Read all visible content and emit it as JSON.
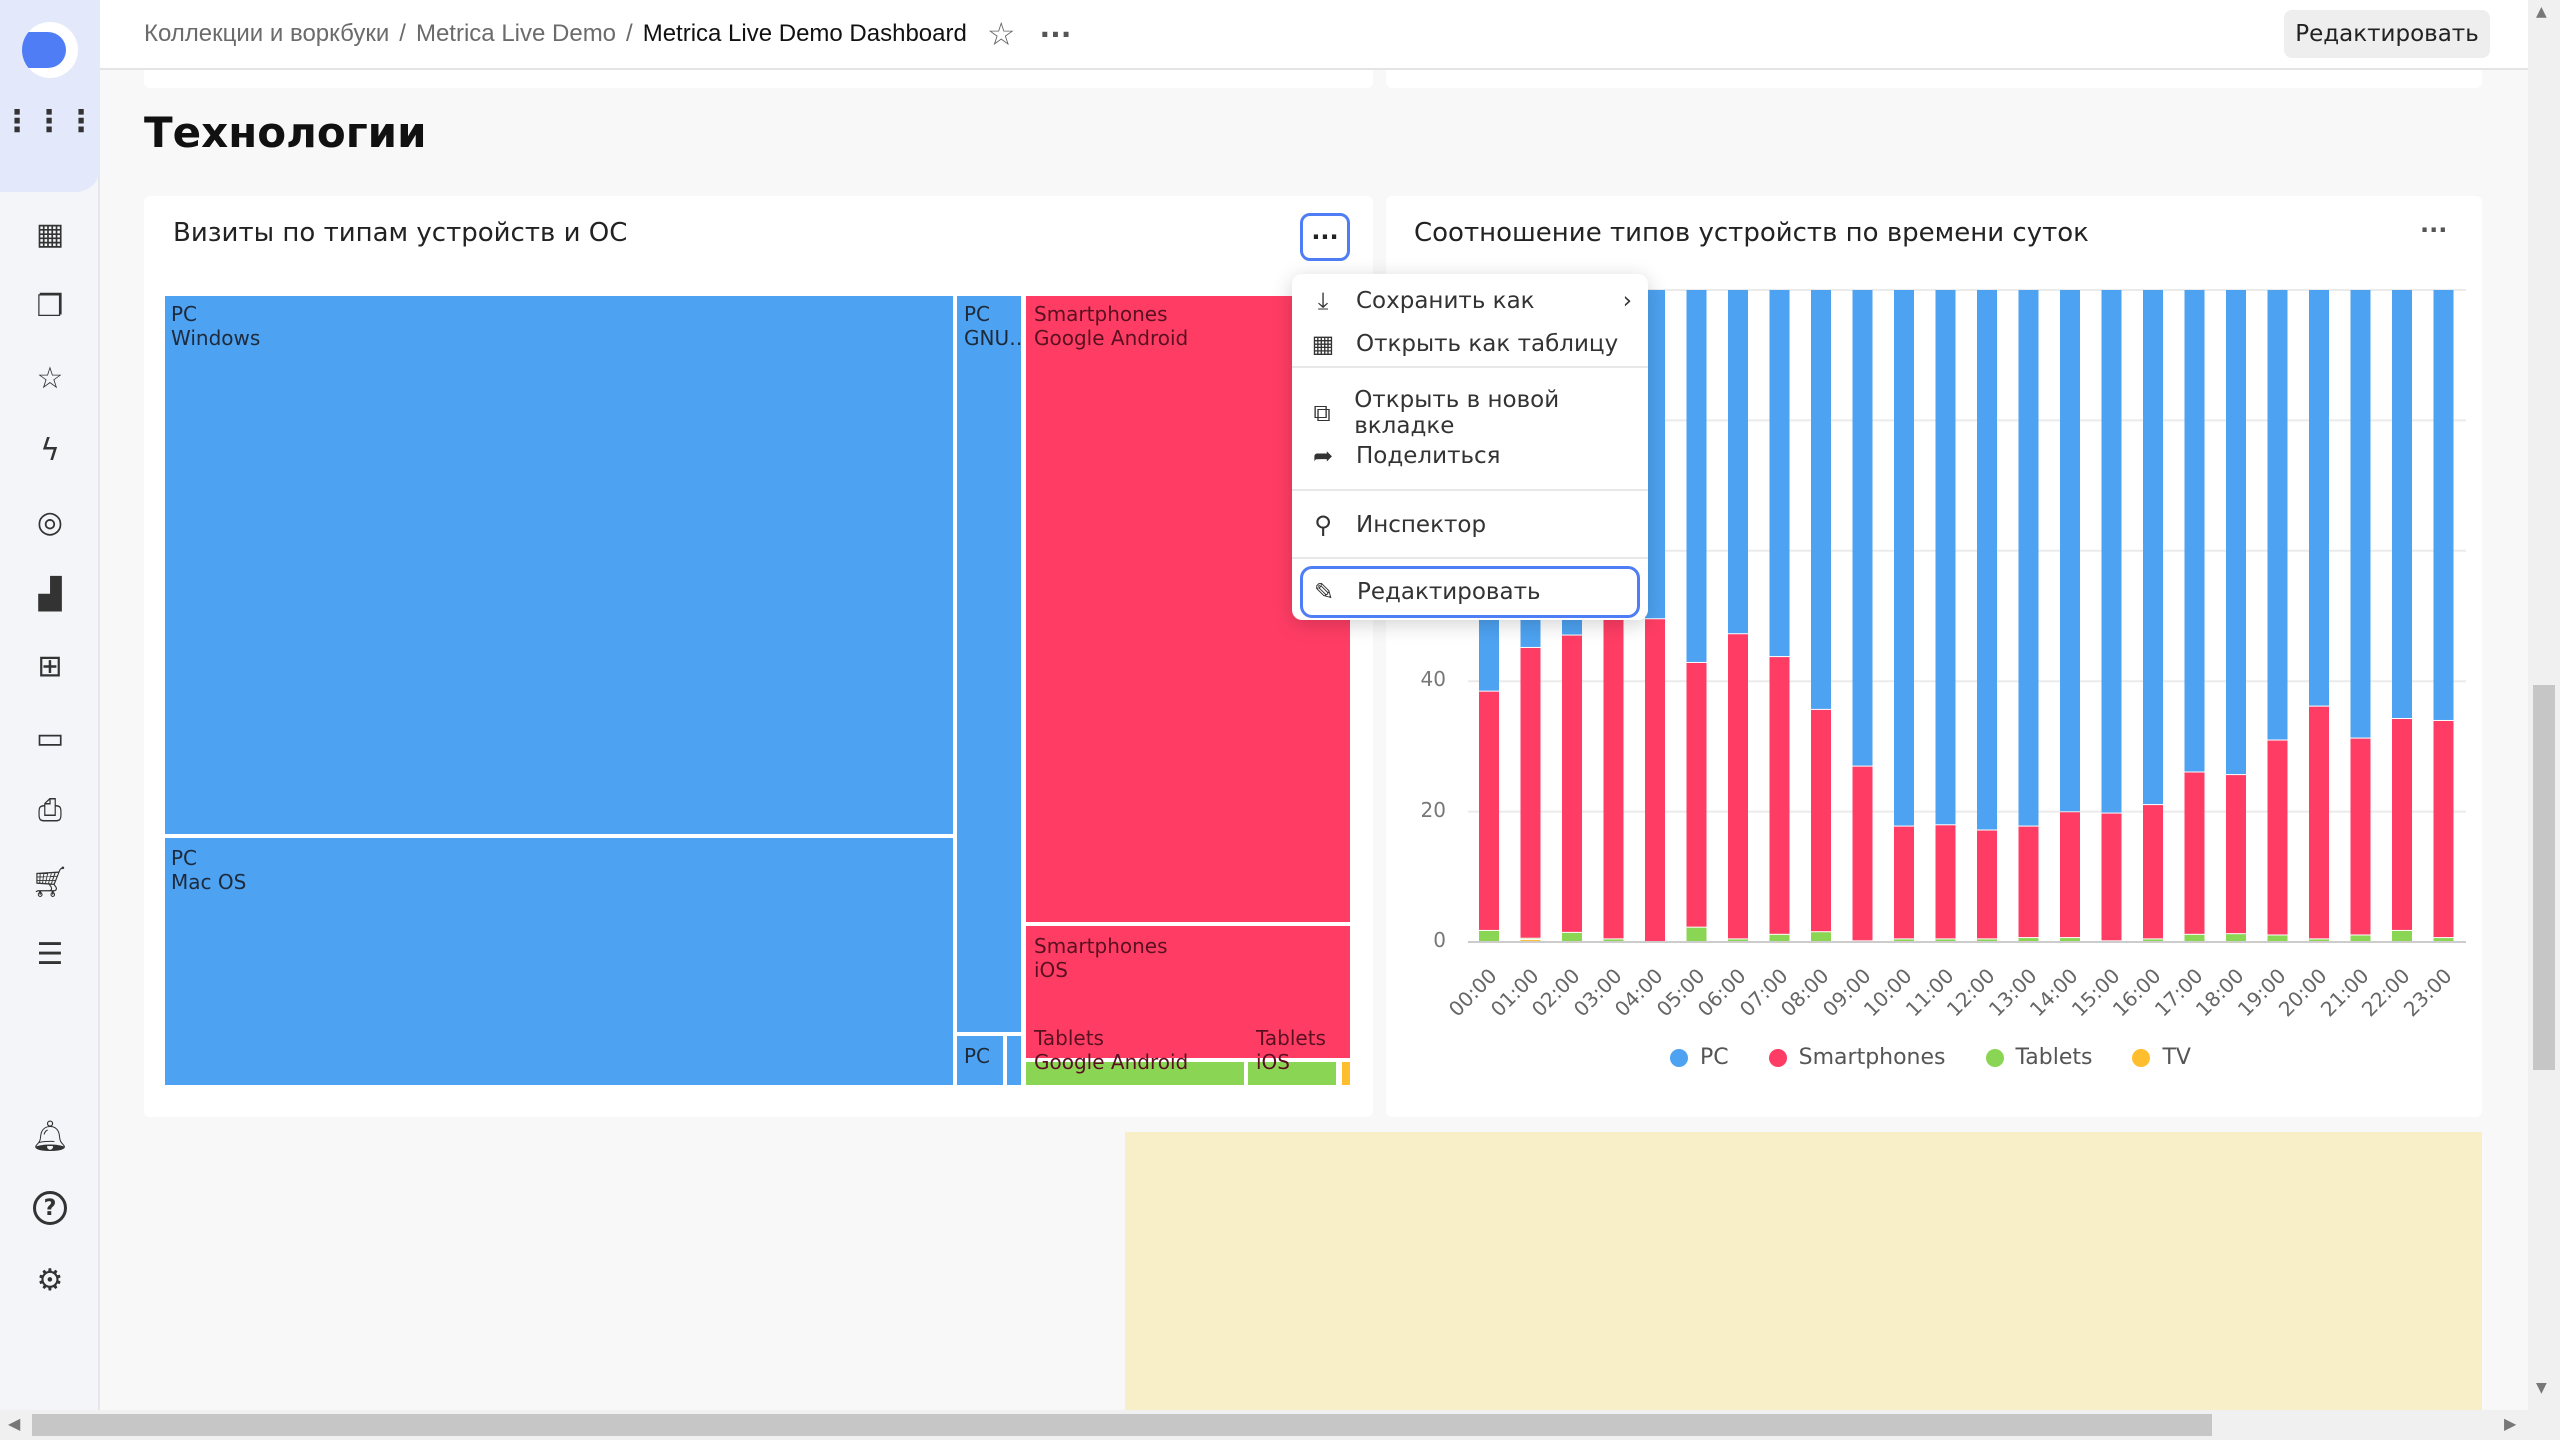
{
  "header": {
    "breadcrumbs": [
      "Коллекции и воркбуки",
      "Metrica Live Demo",
      "Metrica Live Demo Dashboard"
    ],
    "separator": "/",
    "edit_label": "Редактировать"
  },
  "sidebar": {
    "icons": [
      "dashboards-icon",
      "collections-icon",
      "favorites-icon",
      "flash-icon",
      "connections-icon",
      "charts-icon",
      "datasets-icon",
      "monitoring-icon",
      "folder-icon",
      "cart-icon",
      "settings-sliders-icon"
    ],
    "bottom_icons": [
      "bell-icon",
      "help-icon",
      "gear-icon"
    ]
  },
  "page": {
    "title": "Технологии"
  },
  "treemap_widget": {
    "title": "Визиты по типам устройств и ОС",
    "tiles": [
      {
        "label": "PC\nWindows",
        "color": "#4da2f1"
      },
      {
        "label": "PC\nMac OS",
        "color": "#4da2f1"
      },
      {
        "label": "PC\nGNU…",
        "color": "#4da2f1"
      },
      {
        "label": "PC",
        "color": "#4da2f1"
      },
      {
        "label": "Smartphones\nGoogle Android",
        "color": "#ff3d64"
      },
      {
        "label": "Smartphones\niOS",
        "color": "#ff3d64"
      },
      {
        "label": "Tablets\nGoogle Android",
        "color": "#8ad554"
      },
      {
        "label": "Tablets\niOS",
        "color": "#8ad554"
      }
    ]
  },
  "menu": {
    "items": [
      {
        "label": "Сохранить как",
        "icon": "download-icon",
        "submenu": true
      },
      {
        "label": "Открыть как таблицу",
        "icon": "table-icon"
      },
      {
        "label": "Открыть в новой вкладке",
        "icon": "external-link-icon"
      },
      {
        "label": "Поделиться",
        "icon": "share-icon"
      },
      {
        "label": "Инспектор",
        "icon": "search-icon"
      },
      {
        "label": "Редактировать",
        "icon": "pencil-icon",
        "focused": true
      }
    ]
  },
  "chart_widget": {
    "title": "Соотношение типов устройств по времени суток"
  },
  "chart_data": {
    "type": "bar",
    "stacked": "percent",
    "categories": [
      "00:00",
      "01:00",
      "02:00",
      "03:00",
      "04:00",
      "05:00",
      "06:00",
      "07:00",
      "08:00",
      "09:00",
      "10:00",
      "11:00",
      "12:00",
      "13:00",
      "14:00",
      "15:00",
      "16:00",
      "17:00",
      "18:00",
      "19:00",
      "20:00",
      "21:00",
      "22:00",
      "23:00"
    ],
    "yticks": [
      0,
      20,
      40
    ],
    "ylim": [
      0,
      100
    ],
    "grid": true,
    "legend_position": "bottom",
    "series": [
      {
        "name": "TV",
        "color": "#ffbe2e",
        "values": [
          0,
          0.3,
          0,
          0,
          0,
          0,
          0,
          0,
          0,
          0,
          0,
          0,
          0,
          0,
          0,
          0,
          0,
          0,
          0,
          0,
          0,
          0,
          0,
          0
        ]
      },
      {
        "name": "Tablets",
        "color": "#8ad554",
        "values": [
          1.7,
          0.2,
          1.4,
          0.4,
          0,
          2.2,
          0.4,
          1.1,
          1.5,
          0.1,
          0.4,
          0.4,
          0.4,
          0.6,
          0.6,
          0.1,
          0.4,
          1.1,
          1.2,
          1,
          0.4,
          1,
          1.7,
          0.6
        ]
      },
      {
        "name": "Smartphones",
        "color": "#ff3d64",
        "values": [
          36.7,
          44.6,
          45.6,
          50.6,
          49.5,
          40.6,
          46.8,
          42.6,
          34.1,
          26.8,
          17.3,
          17.5,
          16.7,
          17.1,
          19.3,
          19.6,
          20.6,
          24.9,
          24.4,
          29.9,
          35.7,
          30.2,
          32.5,
          33.3
        ]
      },
      {
        "name": "PC",
        "color": "#4da2f1",
        "values": [
          61.6,
          54.9,
          53,
          49,
          50.5,
          57.2,
          52.8,
          56.3,
          64.4,
          73.1,
          82.3,
          82.1,
          82.9,
          82.3,
          80.1,
          80.3,
          79,
          74,
          74.4,
          69.1,
          63.9,
          68.8,
          65.8,
          66.1
        ]
      }
    ],
    "legend": [
      {
        "name": "PC",
        "color": "#4da2f1"
      },
      {
        "name": "Smartphones",
        "color": "#ff3d64"
      },
      {
        "name": "Tablets",
        "color": "#8ad554"
      },
      {
        "name": "TV",
        "color": "#ffbe2e"
      }
    ]
  }
}
